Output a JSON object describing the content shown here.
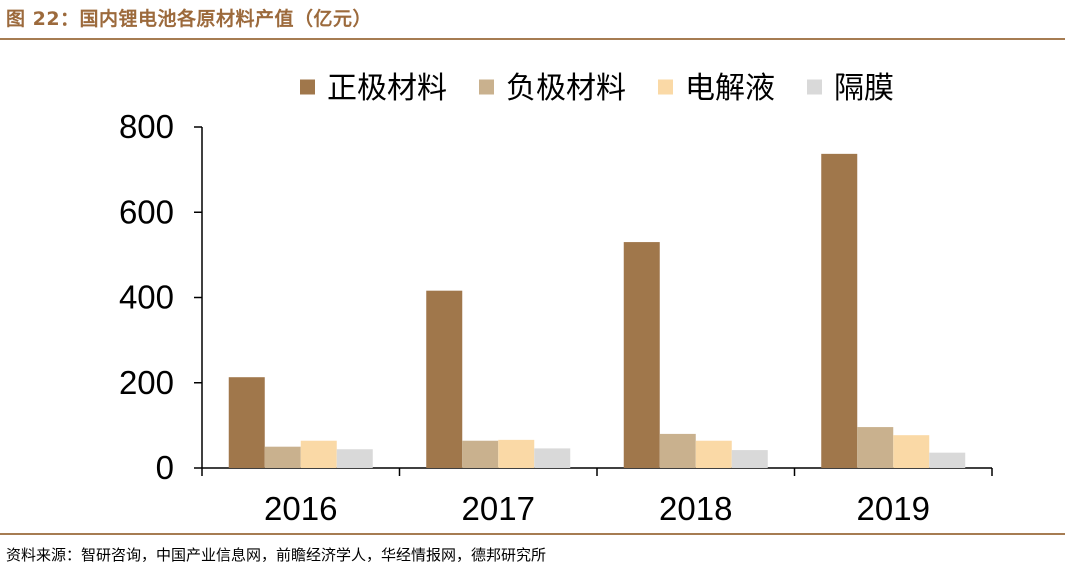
{
  "figure": {
    "title": "图 22：国内锂电池各原材料产值（亿元）",
    "source": "资料来源：智研咨询，中国产业信息网，前瞻经济学人，华经情报网，德邦研究所",
    "rule_color": "#A67C52",
    "title_color": "#9C6A3C"
  },
  "chart_data": {
    "type": "bar",
    "categories": [
      "2016",
      "2017",
      "2018",
      "2019"
    ],
    "series": [
      {
        "name": "正极材料",
        "color": "#A0774B",
        "values": [
          213,
          416,
          530,
          737
        ]
      },
      {
        "name": "负极材料",
        "color": "#C9B18E",
        "values": [
          50,
          64,
          80,
          96
        ]
      },
      {
        "name": "电解液",
        "color": "#FAD9A6",
        "values": [
          64,
          66,
          64,
          77
        ]
      },
      {
        "name": "隔膜",
        "color": "#D9D9D9",
        "values": [
          44,
          46,
          42,
          36
        ]
      }
    ],
    "ylim": [
      0,
      800
    ],
    "yticks": [
      "0",
      "200",
      "400",
      "600",
      "800"
    ],
    "legend_position": "top",
    "grid": false
  }
}
